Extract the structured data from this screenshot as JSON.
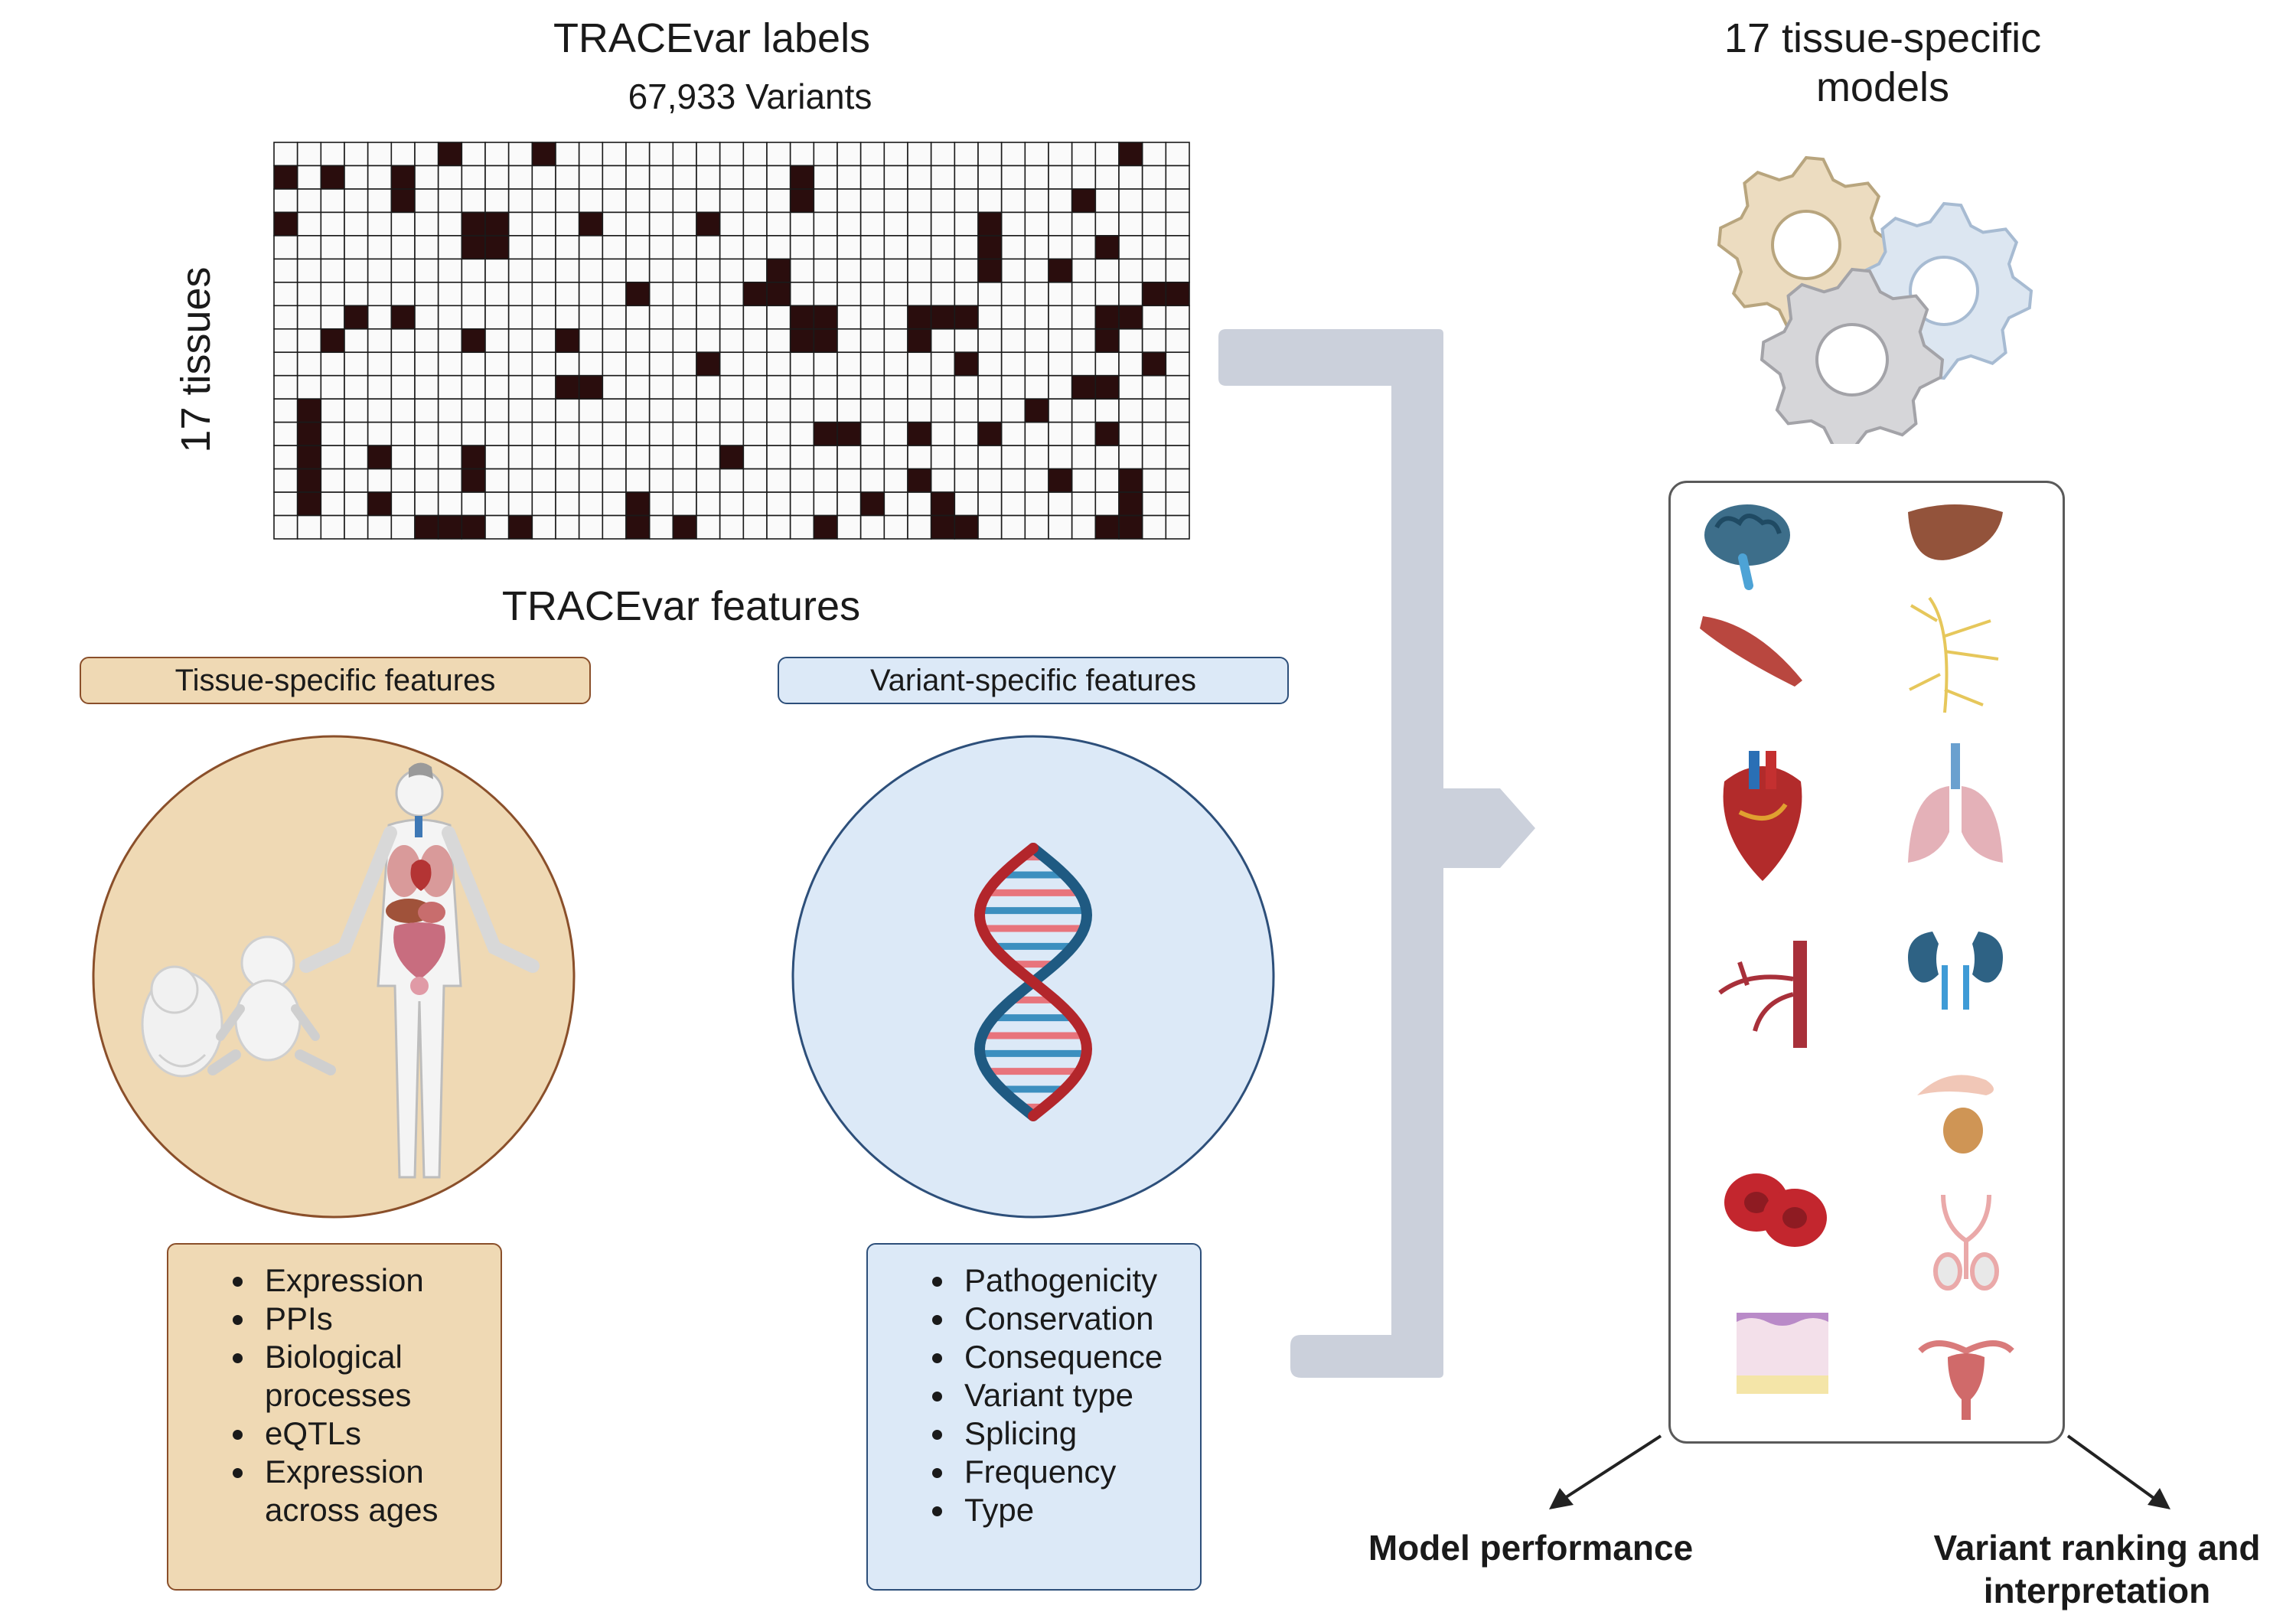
{
  "labels_section": {
    "title": "TRACEvar labels",
    "variants_label": "67,933 Variants",
    "tissues_label": "17 tissues",
    "grid": {
      "rows": 17,
      "cols": 39,
      "filled": [
        [
          0,
          7
        ],
        [
          0,
          11
        ],
        [
          0,
          36
        ],
        [
          1,
          0
        ],
        [
          1,
          2
        ],
        [
          1,
          5
        ],
        [
          1,
          22
        ],
        [
          2,
          5
        ],
        [
          2,
          22
        ],
        [
          2,
          34
        ],
        [
          3,
          0
        ],
        [
          3,
          8
        ],
        [
          3,
          9
        ],
        [
          3,
          13
        ],
        [
          3,
          18
        ],
        [
          3,
          30
        ],
        [
          4,
          8
        ],
        [
          4,
          9
        ],
        [
          4,
          30
        ],
        [
          4,
          35
        ],
        [
          5,
          21
        ],
        [
          5,
          30
        ],
        [
          5,
          33
        ],
        [
          6,
          15
        ],
        [
          6,
          20
        ],
        [
          6,
          21
        ],
        [
          6,
          37
        ],
        [
          6,
          38
        ],
        [
          7,
          3
        ],
        [
          7,
          5
        ],
        [
          7,
          22
        ],
        [
          7,
          23
        ],
        [
          7,
          27
        ],
        [
          7,
          28
        ],
        [
          7,
          29
        ],
        [
          7,
          35
        ],
        [
          7,
          36
        ],
        [
          8,
          2
        ],
        [
          8,
          8
        ],
        [
          8,
          12
        ],
        [
          8,
          22
        ],
        [
          8,
          23
        ],
        [
          8,
          27
        ],
        [
          8,
          35
        ],
        [
          9,
          18
        ],
        [
          9,
          29
        ],
        [
          9,
          37
        ],
        [
          10,
          12
        ],
        [
          10,
          13
        ],
        [
          10,
          34
        ],
        [
          10,
          35
        ],
        [
          11,
          1
        ],
        [
          11,
          32
        ],
        [
          12,
          1
        ],
        [
          12,
          23
        ],
        [
          12,
          24
        ],
        [
          12,
          27
        ],
        [
          12,
          30
        ],
        [
          12,
          35
        ],
        [
          13,
          1
        ],
        [
          13,
          4
        ],
        [
          13,
          8
        ],
        [
          13,
          19
        ],
        [
          14,
          1
        ],
        [
          14,
          8
        ],
        [
          14,
          27
        ],
        [
          14,
          33
        ],
        [
          14,
          36
        ],
        [
          15,
          1
        ],
        [
          15,
          4
        ],
        [
          15,
          15
        ],
        [
          15,
          25
        ],
        [
          15,
          28
        ],
        [
          15,
          36
        ],
        [
          16,
          6
        ],
        [
          16,
          7
        ],
        [
          16,
          8
        ],
        [
          16,
          10
        ],
        [
          16,
          15
        ],
        [
          16,
          17
        ],
        [
          16,
          23
        ],
        [
          16,
          28
        ],
        [
          16,
          29
        ],
        [
          16,
          35
        ],
        [
          16,
          36
        ]
      ]
    }
  },
  "features_section": {
    "title": "TRACEvar features",
    "tissue_pill": "Tissue-specific features",
    "variant_pill": "Variant-specific features",
    "tissue_features": [
      "Expression",
      "PPIs",
      "Biological processes",
      "eQTLs",
      "Expression across ages"
    ],
    "variant_features": [
      "Pathogenicity",
      "Conservation",
      "Consequence",
      "Variant type",
      "Splicing",
      "Frequency",
      "Type"
    ]
  },
  "models_section": {
    "title_line1": "17 tissue-specific",
    "title_line2": "models",
    "organ_icons": [
      "brain-icon",
      "liver-icon",
      "muscle-icon",
      "nerve-icon",
      "heart-icon",
      "lung-icon",
      "artery-icon",
      "kidney-icon",
      "prostate-icon",
      "blood-cells-icon",
      "testis-icon",
      "skin-icon",
      "uterus-icon"
    ]
  },
  "outputs": {
    "model_performance": "Model performance",
    "ranking_line1": "Variant ranking and",
    "ranking_line2": "interpretation"
  },
  "colors": {
    "tissue_fill": "#efd9b4",
    "tissue_border": "#8a4f2a",
    "variant_fill": "#dce9f7",
    "variant_border": "#2d4f7a",
    "cell_filled": "#2a0d0d",
    "cell_empty": "#fafafa",
    "connector": "#cbd0db"
  }
}
